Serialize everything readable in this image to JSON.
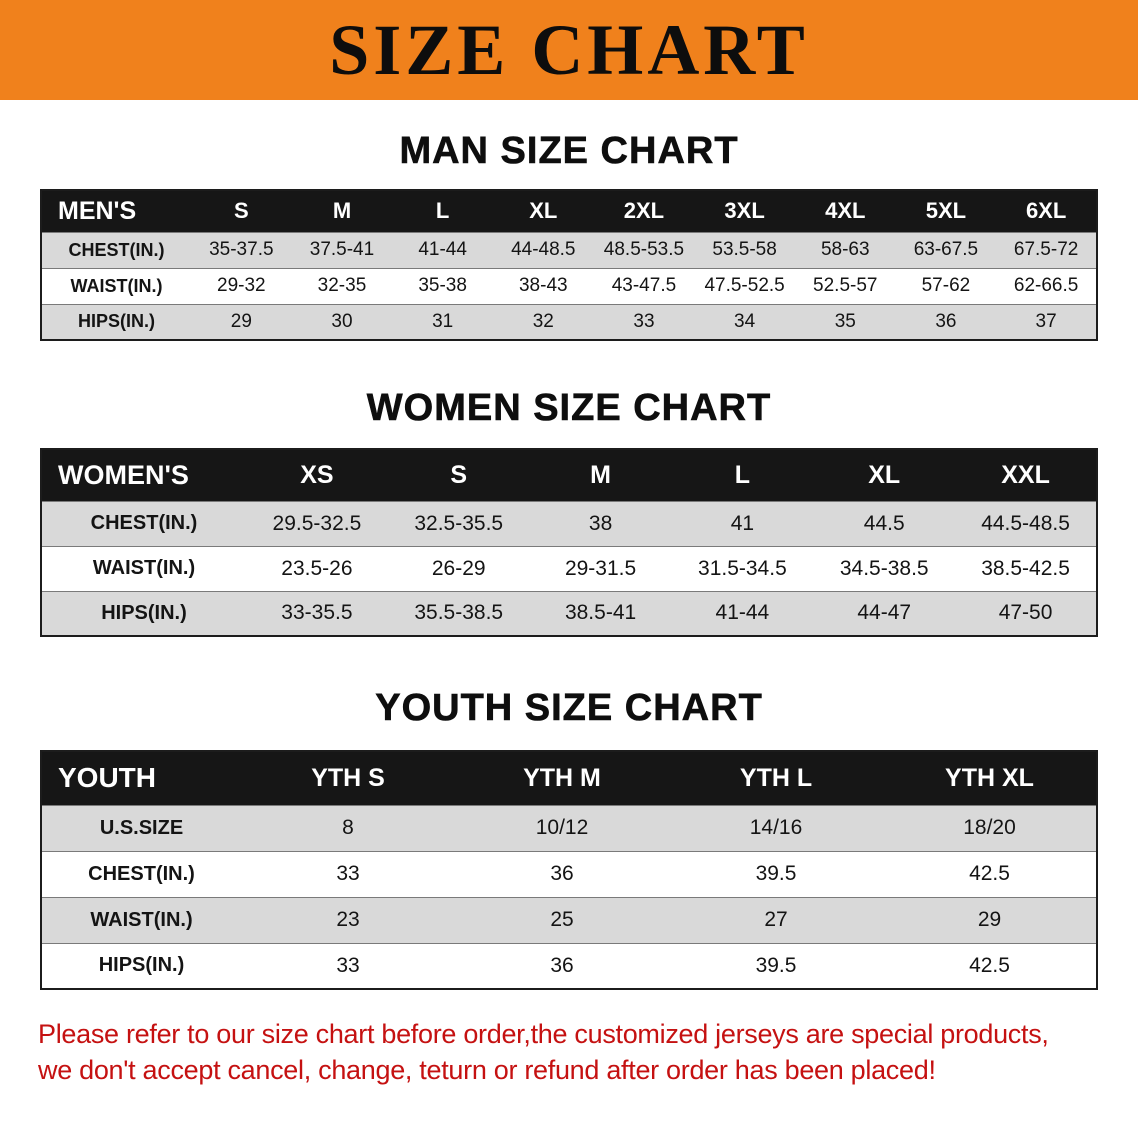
{
  "banner": {
    "title": "SIZE CHART"
  },
  "colors": {
    "banner_bg": "#f0811c",
    "header_bg": "#161616",
    "row_alt": "#d9d9d9",
    "footer_text": "#c51111"
  },
  "sections": [
    {
      "id": "men",
      "heading": "MAN SIZE CHART",
      "table": {
        "header": [
          "MEN'S",
          "S",
          "M",
          "L",
          "XL",
          "2XL",
          "3XL",
          "4XL",
          "5XL",
          "6XL"
        ],
        "rows": [
          [
            "CHEST(IN.)",
            "35-37.5",
            "37.5-41",
            "41-44",
            "44-48.5",
            "48.5-53.5",
            "53.5-58",
            "58-63",
            "63-67.5",
            "67.5-72"
          ],
          [
            "WAIST(IN.)",
            "29-32",
            "32-35",
            "35-38",
            "38-43",
            "43-47.5",
            "47.5-52.5",
            "52.5-57",
            "57-62",
            "62-66.5"
          ],
          [
            "HIPS(IN.)",
            "29",
            "30",
            "31",
            "32",
            "33",
            "34",
            "35",
            "36",
            "37"
          ]
        ]
      }
    },
    {
      "id": "women",
      "heading": "WOMEN SIZE CHART",
      "table": {
        "header": [
          "WOMEN'S",
          "XS",
          "S",
          "M",
          "L",
          "XL",
          "XXL"
        ],
        "rows": [
          [
            "CHEST(IN.)",
            "29.5-32.5",
            "32.5-35.5",
            "38",
            "41",
            "44.5",
            "44.5-48.5"
          ],
          [
            "WAIST(IN.)",
            "23.5-26",
            "26-29",
            "29-31.5",
            "31.5-34.5",
            "34.5-38.5",
            "38.5-42.5"
          ],
          [
            "HIPS(IN.)",
            "33-35.5",
            "35.5-38.5",
            "38.5-41",
            "41-44",
            "44-47",
            "47-50"
          ]
        ]
      }
    },
    {
      "id": "youth",
      "heading": "YOUTH SIZE CHART",
      "table": {
        "header": [
          "YOUTH",
          "YTH S",
          "YTH M",
          "YTH L",
          "YTH XL"
        ],
        "rows": [
          [
            "U.S.SIZE",
            "8",
            "10/12",
            "14/16",
            "18/20"
          ],
          [
            "CHEST(IN.)",
            "33",
            "36",
            "39.5",
            "42.5"
          ],
          [
            "WAIST(IN.)",
            "23",
            "25",
            "27",
            "29"
          ],
          [
            "HIPS(IN.)",
            "33",
            "36",
            "39.5",
            "42.5"
          ]
        ]
      }
    }
  ],
  "footer": {
    "lines": [
      "Please refer to our size chart before order,the customized jerseys are special products,",
      "we don't accept cancel, change, teturn or refund after order has been placed!"
    ]
  }
}
